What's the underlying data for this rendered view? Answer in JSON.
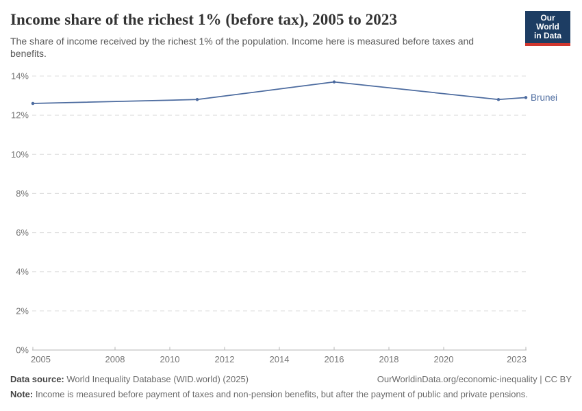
{
  "logo": {
    "line1": "Our World",
    "line2": "in Data",
    "background_color": "#1d3d63",
    "accent_color": "#d0362e"
  },
  "chart_data": {
    "type": "line",
    "title": "Income share of the richest 1% (before tax), 2005 to 2023",
    "subtitle": "The share of income received by the richest 1% of the population. Income here is measured before taxes and benefits.",
    "series": [
      {
        "name": "Brunei",
        "color": "#4C6B9F",
        "points": [
          {
            "year": 2005,
            "value": 12.6
          },
          {
            "year": 2011,
            "value": 12.8
          },
          {
            "year": 2016,
            "value": 13.7
          },
          {
            "year": 2022,
            "value": 12.8
          },
          {
            "year": 2023,
            "value": 12.9
          }
        ]
      }
    ],
    "xlabel": "",
    "ylabel": "",
    "xlim": [
      2005,
      2023
    ],
    "ylim": [
      0,
      14
    ],
    "xticks": [
      2005,
      2008,
      2010,
      2012,
      2014,
      2016,
      2018,
      2020,
      2023
    ],
    "yticks": [
      0,
      2,
      4,
      6,
      8,
      10,
      12,
      14
    ],
    "y_tick_suffix": "%",
    "grid": "dashed horizontal",
    "legend_position": "end-of-line label",
    "grid_color": "#dcdcdc",
    "axis_color": "#b5b5b5",
    "tick_label_color": "#757575"
  },
  "footer": {
    "data_source_label": "Data source:",
    "data_source_text": " World Inequality Database (WID.world) (2025)",
    "attribution": "OurWorldinData.org/economic-inequality | CC BY",
    "note_label": "Note:",
    "note_text": " Income is measured before payment of taxes and non-pension benefits, but after the payment of public and private pensions."
  }
}
